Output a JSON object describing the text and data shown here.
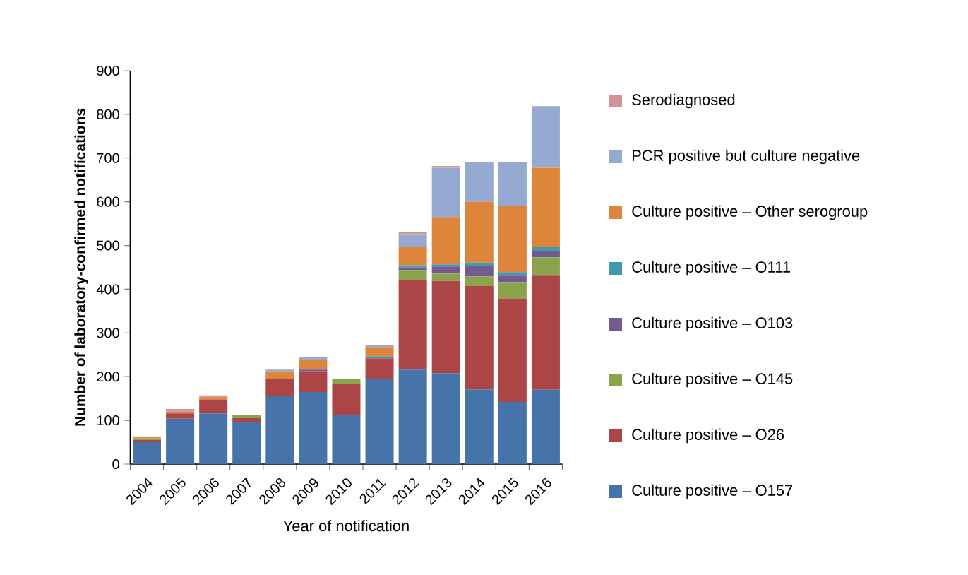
{
  "chart_data": {
    "type": "bar",
    "stacked": true,
    "xlabel": "Year of notification",
    "ylabel": "Number of laboratory-confirmed notifications",
    "categories": [
      "2004",
      "2005",
      "2006",
      "2007",
      "2008",
      "2009",
      "2010",
      "2011",
      "2012",
      "2013",
      "2014",
      "2015",
      "2016"
    ],
    "ylim": [
      0,
      900
    ],
    "yticks": [
      0,
      100,
      200,
      300,
      400,
      500,
      600,
      700,
      800,
      900
    ],
    "legend": "right",
    "grid": false,
    "series": [
      {
        "name": "Culture positive – O157",
        "color": "#4674aa",
        "values": [
          50,
          104,
          116,
          96,
          155,
          165,
          112,
          194,
          216,
          208,
          171,
          142,
          170
        ]
      },
      {
        "name": "Culture positive – O26",
        "color": "#ac4545",
        "values": [
          5,
          12,
          31,
          9,
          39,
          47,
          71,
          48,
          204,
          211,
          236,
          237,
          261
        ]
      },
      {
        "name": "Culture positive – O145",
        "color": "#8aa44c",
        "values": [
          4,
          null,
          null,
          8,
          null,
          null,
          12,
          null,
          24,
          17,
          22,
          37,
          42
        ]
      },
      {
        "name": "Culture positive – O103",
        "color": "#735a8f",
        "values": [
          null,
          null,
          null,
          null,
          null,
          4,
          null,
          null,
          6,
          16,
          24,
          15,
          14
        ]
      },
      {
        "name": "Culture positive – O111",
        "color": "#4298ad",
        "values": [
          null,
          null,
          null,
          null,
          null,
          null,
          null,
          5,
          5,
          5,
          8,
          8,
          9
        ]
      },
      {
        "name": "Culture positive – Other serogroup",
        "color": "#dd853a",
        "values": [
          4,
          4,
          4,
          null,
          18,
          23,
          null,
          21,
          41,
          108,
          139,
          152,
          182
        ]
      },
      {
        "name": "PCR positive but culture negative",
        "color": "#95a9d1",
        "values": [
          null,
          null,
          null,
          null,
          4,
          5,
          null,
          5,
          30,
          113,
          90,
          99,
          141
        ]
      },
      {
        "name": "Serodiagnosed",
        "color": "#d39594",
        "values": [
          null,
          6,
          6,
          null,
          null,
          null,
          null,
          null,
          5,
          4,
          null,
          null,
          null
        ]
      }
    ]
  }
}
